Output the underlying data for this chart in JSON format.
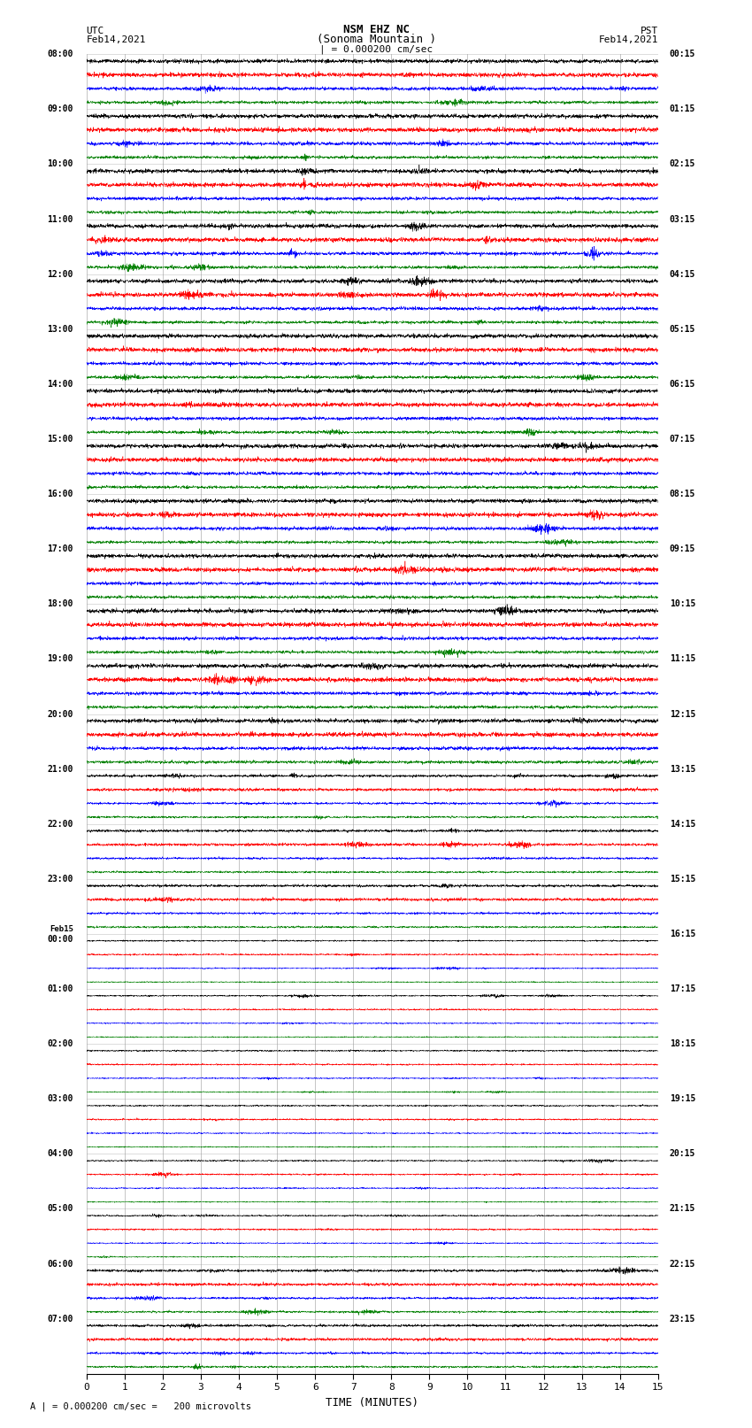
{
  "title_line1": "NSM EHZ NC",
  "title_line2": "(Sonoma Mountain )",
  "title_scale": "| = 0.000200 cm/sec",
  "left_label_line1": "UTC",
  "left_label_line2": "Feb14,2021",
  "right_label_line1": "PST",
  "right_label_line2": "Feb14,2021",
  "xlabel": "TIME (MINUTES)",
  "footer": "A | = 0.000200 cm/sec =   200 microvolts",
  "colors": [
    "black",
    "red",
    "blue",
    "green"
  ],
  "n_hours": 24,
  "xmin": 0,
  "xmax": 15,
  "background_color": "white",
  "grid_color": "#999999",
  "noise_amplitude_base": 0.12,
  "noise_seed": 42
}
